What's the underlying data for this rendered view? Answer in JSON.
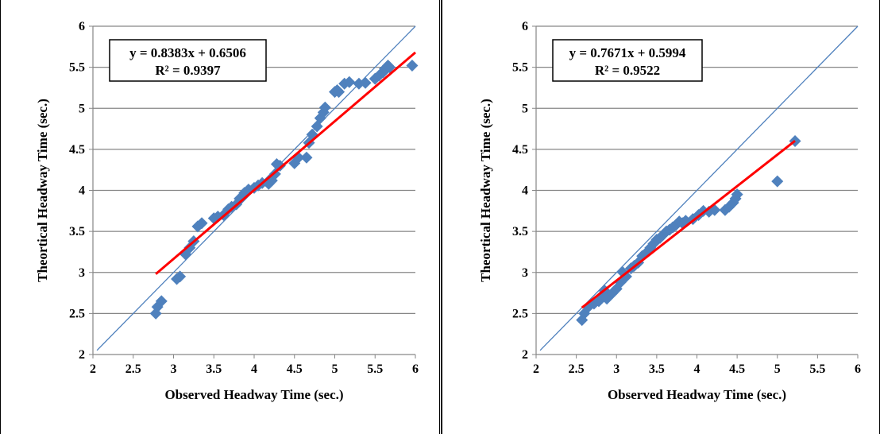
{
  "chart_data": [
    {
      "type": "scatter",
      "xlabel": "Observed Headway Time (sec.)",
      "ylabel": "Theortical Headway Time (sec.)",
      "xlim": [
        2,
        6
      ],
      "ylim": [
        2,
        6
      ],
      "xticks": [
        "2",
        "2.5",
        "3",
        "3.5",
        "4",
        "4.5",
        "5",
        "5.5",
        "6"
      ],
      "yticks": [
        "2",
        "2.5",
        "3",
        "3.5",
        "4",
        "4.5",
        "5",
        "5.5",
        "6"
      ],
      "grid": "horizontal",
      "equation": "y = 0.8383x + 0.6506",
      "r_squared": "R² = 0.9397",
      "marker_color": "#4F81BD",
      "trend_color": "#FF0000",
      "reference_color": "#4F81BD",
      "trendline": {
        "slope": 0.8383,
        "intercept": 0.6506,
        "x_range": [
          2.78,
          6.0
        ]
      },
      "reference_line": {
        "x_range": [
          2.05,
          6.0
        ]
      },
      "points": [
        [
          2.78,
          2.5
        ],
        [
          2.8,
          2.58
        ],
        [
          2.85,
          2.65
        ],
        [
          3.04,
          2.92
        ],
        [
          3.08,
          2.95
        ],
        [
          3.15,
          3.22
        ],
        [
          3.2,
          3.3
        ],
        [
          3.25,
          3.38
        ],
        [
          3.3,
          3.56
        ],
        [
          3.35,
          3.6
        ],
        [
          3.5,
          3.66
        ],
        [
          3.55,
          3.68
        ],
        [
          3.62,
          3.7
        ],
        [
          3.68,
          3.77
        ],
        [
          3.72,
          3.8
        ],
        [
          3.78,
          3.83
        ],
        [
          3.82,
          3.9
        ],
        [
          3.88,
          3.97
        ],
        [
          3.93,
          4.01
        ],
        [
          4.0,
          4.03
        ],
        [
          4.05,
          4.06
        ],
        [
          4.1,
          4.09
        ],
        [
          4.18,
          4.08
        ],
        [
          4.22,
          4.12
        ],
        [
          4.26,
          4.2
        ],
        [
          4.28,
          4.32
        ],
        [
          4.32,
          4.3
        ],
        [
          4.5,
          4.33
        ],
        [
          4.55,
          4.4
        ],
        [
          4.65,
          4.4
        ],
        [
          4.68,
          4.58
        ],
        [
          4.72,
          4.68
        ],
        [
          4.78,
          4.78
        ],
        [
          4.82,
          4.88
        ],
        [
          4.86,
          4.95
        ],
        [
          4.88,
          5.01
        ],
        [
          5.0,
          5.2
        ],
        [
          5.03,
          5.22
        ],
        [
          5.05,
          5.2
        ],
        [
          5.12,
          5.3
        ],
        [
          5.18,
          5.32
        ],
        [
          5.3,
          5.3
        ],
        [
          5.38,
          5.31
        ],
        [
          5.5,
          5.36
        ],
        [
          5.55,
          5.4
        ],
        [
          5.6,
          5.44
        ],
        [
          5.62,
          5.48
        ],
        [
          5.66,
          5.52
        ],
        [
          5.68,
          5.5
        ],
        [
          5.96,
          5.52
        ]
      ]
    },
    {
      "type": "scatter",
      "xlabel": "Observed Headway Time (sec.)",
      "ylabel": "Theortical Headway Time (sec.)",
      "xlim": [
        2,
        6
      ],
      "ylim": [
        2,
        6
      ],
      "xticks": [
        "2",
        "2.5",
        "3",
        "3.5",
        "4",
        "4.5",
        "5",
        "5.5",
        "6"
      ],
      "yticks": [
        "2",
        "2.5",
        "3",
        "3.5",
        "4",
        "4.5",
        "5",
        "5.5",
        "6"
      ],
      "grid": "horizontal",
      "equation": "y = 0.7671x + 0.5994",
      "r_squared": "R² = 0.9522",
      "marker_color": "#4F81BD",
      "trend_color": "#FF0000",
      "reference_color": "#4F81BD",
      "trendline": {
        "slope": 0.7671,
        "intercept": 0.5994,
        "x_range": [
          2.57,
          5.22
        ]
      },
      "reference_line": {
        "x_range": [
          2.05,
          6.0
        ]
      },
      "points": [
        [
          2.57,
          2.42
        ],
        [
          2.6,
          2.5
        ],
        [
          2.65,
          2.58
        ],
        [
          2.72,
          2.62
        ],
        [
          2.78,
          2.65
        ],
        [
          2.82,
          2.72
        ],
        [
          2.85,
          2.78
        ],
        [
          2.88,
          2.68
        ],
        [
          2.95,
          2.75
        ],
        [
          3.0,
          2.8
        ],
        [
          3.05,
          2.88
        ],
        [
          3.08,
          3.0
        ],
        [
          3.12,
          2.95
        ],
        [
          3.18,
          3.05
        ],
        [
          3.22,
          3.08
        ],
        [
          3.27,
          3.12
        ],
        [
          3.32,
          3.2
        ],
        [
          3.38,
          3.25
        ],
        [
          3.42,
          3.3
        ],
        [
          3.46,
          3.35
        ],
        [
          3.5,
          3.4
        ],
        [
          3.54,
          3.42
        ],
        [
          3.58,
          3.46
        ],
        [
          3.62,
          3.5
        ],
        [
          3.66,
          3.52
        ],
        [
          3.7,
          3.55
        ],
        [
          3.74,
          3.58
        ],
        [
          3.78,
          3.62
        ],
        [
          3.82,
          3.6
        ],
        [
          3.86,
          3.63
        ],
        [
          3.95,
          3.65
        ],
        [
          4.02,
          3.7
        ],
        [
          4.08,
          3.75
        ],
        [
          4.15,
          3.74
        ],
        [
          4.22,
          3.76
        ],
        [
          4.35,
          3.76
        ],
        [
          4.4,
          3.8
        ],
        [
          4.45,
          3.85
        ],
        [
          4.48,
          3.9
        ],
        [
          4.5,
          3.95
        ],
        [
          5.0,
          4.11
        ],
        [
          5.22,
          4.6
        ]
      ]
    }
  ]
}
